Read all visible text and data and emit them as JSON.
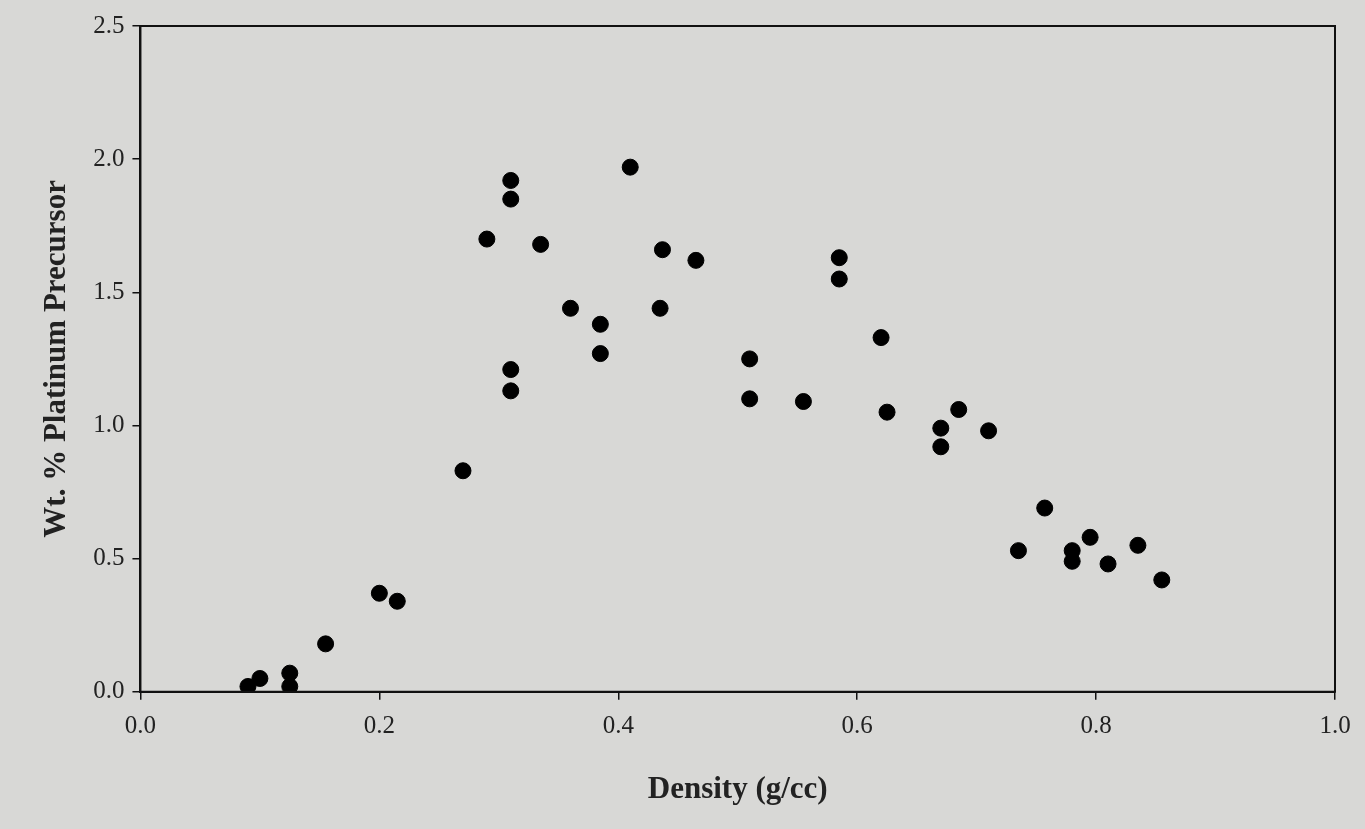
{
  "chart_data": {
    "type": "scatter",
    "xlabel": "Density (g/cc)",
    "ylabel": "Wt. % Platinum Precursor",
    "xlim": [
      0,
      1.0
    ],
    "ylim": [
      0,
      2.5
    ],
    "xticks": [
      {
        "value": 0,
        "label": "0.0"
      },
      {
        "value": 0.2,
        "label": "0.2"
      },
      {
        "value": 0.4,
        "label": "0.4"
      },
      {
        "value": 0.6,
        "label": "0.6"
      },
      {
        "value": 0.8,
        "label": "0.8"
      },
      {
        "value": 1.0,
        "label": "1.0"
      }
    ],
    "yticks": [
      {
        "value": 0,
        "label": "0.0"
      },
      {
        "value": 0.5,
        "label": "0.5"
      },
      {
        "value": 1.0,
        "label": "1.0"
      },
      {
        "value": 1.5,
        "label": "1.5"
      },
      {
        "value": 2.0,
        "label": "2.0"
      },
      {
        "value": 2.5,
        "label": "2.5"
      }
    ],
    "grid": false,
    "legend": false,
    "marker": "circle",
    "series": [
      {
        "color": "#000000",
        "x": [
          0.09,
          0.1,
          0.125,
          0.125,
          0.155,
          0.2,
          0.215,
          0.27,
          0.29,
          0.31,
          0.31,
          0.31,
          0.31,
          0.335,
          0.36,
          0.385,
          0.385,
          0.41,
          0.435,
          0.437,
          0.465,
          0.51,
          0.51,
          0.555,
          0.585,
          0.585,
          0.62,
          0.625,
          0.67,
          0.67,
          0.685,
          0.71,
          0.735,
          0.757,
          0.78,
          0.78,
          0.795,
          0.81,
          0.835,
          0.855
        ],
        "values": [
          0.02,
          0.05,
          0.07,
          0.02,
          0.18,
          0.37,
          0.34,
          0.83,
          1.7,
          1.92,
          1.85,
          1.21,
          1.13,
          1.68,
          1.44,
          1.38,
          1.27,
          1.97,
          1.44,
          1.66,
          1.62,
          1.25,
          1.1,
          1.09,
          1.63,
          1.55,
          1.33,
          1.05,
          0.99,
          0.92,
          1.06,
          0.98,
          0.53,
          0.69,
          0.53,
          0.49,
          0.58,
          0.48,
          0.55,
          0.42
        ]
      }
    ]
  }
}
